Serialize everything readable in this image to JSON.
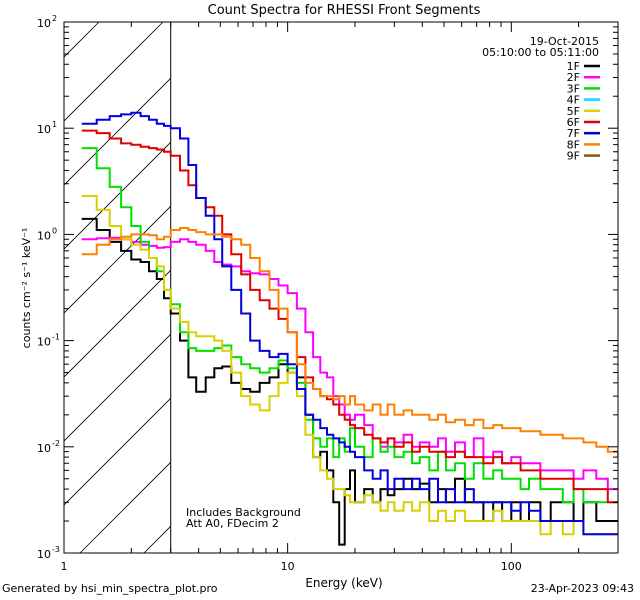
{
  "chart_data": {
    "type": "line",
    "title": "Count Spectra for RHESSI Front Segments",
    "xlabel": "Energy (keV)",
    "ylabel": "counts cm⁻² s⁻¹ keV⁻¹",
    "xscale": "log",
    "yscale": "log",
    "xlim": [
      1,
      300
    ],
    "ylim": [
      0.001,
      100
    ],
    "x_tick_labels": [
      "1",
      "10",
      "100"
    ],
    "y_tick_labels": [
      {
        "base": "10",
        "exp": "-3"
      },
      {
        "base": "10",
        "exp": "-2"
      },
      {
        "base": "10",
        "exp": "-1"
      },
      {
        "base": "10",
        "exp": "0"
      },
      {
        "base": "10",
        "exp": "1"
      },
      {
        "base": "10",
        "exp": "2"
      }
    ],
    "attenuator_region_max_keV": 3,
    "annotations": [
      "Includes Background",
      "Att A0, FDecim 2"
    ],
    "date": "19-Oct-2015",
    "time_range": "05:10:00 to 05:11:00",
    "legend": [
      {
        "label": "1F",
        "color": "#000000"
      },
      {
        "label": "2F",
        "color": "#ff00ff"
      },
      {
        "label": "3F",
        "color": "#00e000"
      },
      {
        "label": "4F",
        "color": "#00e0ff"
      },
      {
        "label": "5F",
        "color": "#d8d000"
      },
      {
        "label": "6F",
        "color": "#e00000"
      },
      {
        "label": "7F",
        "color": "#0000e0"
      },
      {
        "label": "8F",
        "color": "#ff8000"
      },
      {
        "label": "9F",
        "color": "#806000"
      }
    ],
    "series": [
      {
        "name": "1F",
        "color": "#000000",
        "x": [
          1.2,
          1.4,
          1.6,
          1.8,
          2.0,
          2.2,
          2.4,
          2.6,
          2.8,
          3.0,
          3.3,
          3.6,
          3.9,
          4.3,
          4.7,
          5.1,
          5.6,
          6.2,
          6.8,
          7.5,
          8.3,
          9.1,
          10,
          11,
          12,
          13,
          14,
          15,
          16,
          17,
          18,
          19,
          20,
          22,
          24,
          26,
          28,
          30,
          33,
          36,
          39,
          43,
          47,
          51,
          56,
          62,
          68,
          75,
          83,
          91,
          100,
          110,
          120,
          135,
          150,
          170,
          190,
          210,
          240,
          270,
          300
        ],
        "y": [
          1.4,
          1.1,
          0.85,
          0.7,
          0.58,
          0.55,
          0.45,
          0.38,
          0.25,
          0.18,
          0.1,
          0.045,
          0.033,
          0.045,
          0.055,
          0.057,
          0.04,
          0.035,
          0.033,
          0.04,
          0.045,
          0.06,
          0.05,
          0.045,
          0.02,
          0.008,
          0.009,
          0.006,
          0.003,
          0.0012,
          0.004,
          0.006,
          0.003,
          0.004,
          0.003,
          0.004,
          0.0035,
          0.004,
          0.005,
          0.004,
          0.0045,
          0.003,
          0.004,
          0.003,
          0.005,
          0.003,
          0.003,
          0.002,
          0.003,
          0.002,
          0.003,
          0.002,
          0.003,
          0.002,
          0.003,
          0.003,
          0.002,
          0.003,
          0.002,
          0.002,
          0.002
        ]
      },
      {
        "name": "2F",
        "color": "#ff00ff",
        "x": [
          1.2,
          1.4,
          1.6,
          1.8,
          2.0,
          2.2,
          2.4,
          2.6,
          2.8,
          3.0,
          3.3,
          3.6,
          3.9,
          4.3,
          4.7,
          5.1,
          5.6,
          6.2,
          6.8,
          7.5,
          8.3,
          9.1,
          10,
          11,
          12,
          13,
          14,
          15,
          16,
          17,
          18,
          19,
          20,
          22,
          24,
          26,
          28,
          30,
          33,
          36,
          39,
          43,
          47,
          51,
          56,
          62,
          68,
          75,
          83,
          91,
          100,
          110,
          120,
          135,
          150,
          170,
          190,
          210,
          240,
          270,
          300
        ],
        "y": [
          0.9,
          0.92,
          0.93,
          0.9,
          0.85,
          0.8,
          0.78,
          0.75,
          0.76,
          0.85,
          0.9,
          0.85,
          0.8,
          0.7,
          0.55,
          0.52,
          0.5,
          0.45,
          0.43,
          0.42,
          0.38,
          0.33,
          0.28,
          0.2,
          0.12,
          0.07,
          0.05,
          0.045,
          0.03,
          0.025,
          0.02,
          0.018,
          0.02,
          0.016,
          0.012,
          0.01,
          0.012,
          0.011,
          0.013,
          0.01,
          0.011,
          0.01,
          0.012,
          0.009,
          0.011,
          0.008,
          0.012,
          0.008,
          0.009,
          0.007,
          0.008,
          0.007,
          0.007,
          0.006,
          0.006,
          0.006,
          0.005,
          0.006,
          0.005,
          0.004,
          0.004
        ]
      },
      {
        "name": "3F",
        "color": "#00e000",
        "x": [
          1.2,
          1.4,
          1.6,
          1.8,
          2.0,
          2.2,
          2.4,
          2.6,
          2.8,
          3.0,
          3.3,
          3.6,
          3.9,
          4.3,
          4.7,
          5.1,
          5.6,
          6.2,
          6.8,
          7.5,
          8.3,
          9.1,
          10,
          11,
          12,
          13,
          14,
          15,
          16,
          17,
          18,
          19,
          20,
          22,
          24,
          26,
          28,
          30,
          33,
          36,
          39,
          43,
          47,
          51,
          56,
          62,
          68,
          75,
          83,
          91,
          100,
          110,
          120,
          135,
          150,
          170,
          190,
          210,
          240,
          270,
          300
        ],
        "y": [
          6.5,
          4.2,
          2.8,
          1.8,
          1.2,
          0.85,
          0.6,
          0.45,
          0.3,
          0.22,
          0.12,
          0.085,
          0.08,
          0.08,
          0.085,
          0.09,
          0.07,
          0.06,
          0.055,
          0.05,
          0.055,
          0.065,
          0.055,
          0.04,
          0.018,
          0.012,
          0.01,
          0.012,
          0.008,
          0.012,
          0.009,
          0.015,
          0.01,
          0.008,
          0.012,
          0.009,
          0.01,
          0.008,
          0.009,
          0.007,
          0.008,
          0.006,
          0.009,
          0.006,
          0.007,
          0.005,
          0.007,
          0.005,
          0.006,
          0.005,
          0.005,
          0.004,
          0.005,
          0.004,
          0.004,
          0.003,
          0.004,
          0.003,
          0.003,
          0.003,
          0.003
        ]
      },
      {
        "name": "5F",
        "color": "#d8d000",
        "x": [
          1.2,
          1.4,
          1.6,
          1.8,
          2.0,
          2.2,
          2.4,
          2.6,
          2.8,
          3.0,
          3.3,
          3.6,
          3.9,
          4.3,
          4.7,
          5.1,
          5.6,
          6.2,
          6.8,
          7.5,
          8.3,
          9.1,
          10,
          11,
          12,
          13,
          14,
          15,
          16,
          17,
          18,
          19,
          20,
          22,
          24,
          26,
          28,
          30,
          33,
          36,
          39,
          43,
          47,
          51,
          56,
          62,
          68,
          75,
          83,
          91,
          100,
          110,
          120,
          135,
          150,
          170,
          190,
          210,
          240,
          270,
          300
        ],
        "y": [
          2.3,
          1.7,
          1.2,
          0.9,
          0.8,
          0.72,
          0.6,
          0.5,
          0.3,
          0.2,
          0.15,
          0.12,
          0.11,
          0.11,
          0.1,
          0.08,
          0.05,
          0.03,
          0.025,
          0.022,
          0.03,
          0.04,
          0.05,
          0.03,
          0.013,
          0.008,
          0.006,
          0.005,
          0.004,
          0.004,
          0.0035,
          0.003,
          0.003,
          0.0035,
          0.003,
          0.0025,
          0.003,
          0.0025,
          0.003,
          0.0025,
          0.003,
          0.002,
          0.0025,
          0.002,
          0.0025,
          0.002,
          0.002,
          0.002,
          0.0025,
          0.002,
          0.002,
          0.002,
          0.002,
          0.0015,
          0.002,
          0.0015,
          0.002,
          0.0015,
          0.0015,
          0.0015,
          0.0015
        ]
      },
      {
        "name": "6F",
        "color": "#e00000",
        "x": [
          1.2,
          1.4,
          1.6,
          1.8,
          2.0,
          2.2,
          2.4,
          2.6,
          2.8,
          3.0,
          3.3,
          3.6,
          3.9,
          4.3,
          4.7,
          5.1,
          5.6,
          6.2,
          6.8,
          7.5,
          8.3,
          9.1,
          10,
          11,
          12,
          13,
          14,
          15,
          16,
          17,
          18,
          19,
          20,
          22,
          24,
          26,
          28,
          30,
          33,
          36,
          39,
          43,
          47,
          51,
          56,
          62,
          68,
          75,
          83,
          91,
          100,
          110,
          120,
          135,
          150,
          170,
          190,
          210,
          240,
          270,
          300
        ],
        "y": [
          9.5,
          9.0,
          8.0,
          7.2,
          7.0,
          6.7,
          6.5,
          6.3,
          6.0,
          5.5,
          4.0,
          2.9,
          2.2,
          1.8,
          1.5,
          1.0,
          0.65,
          0.42,
          0.3,
          0.24,
          0.2,
          0.16,
          0.12,
          0.07,
          0.045,
          0.035,
          0.03,
          0.028,
          0.025,
          0.02,
          0.018,
          0.016,
          0.015,
          0.013,
          0.012,
          0.011,
          0.012,
          0.01,
          0.011,
          0.009,
          0.01,
          0.009,
          0.009,
          0.008,
          0.009,
          0.008,
          0.008,
          0.007,
          0.008,
          0.007,
          0.007,
          0.006,
          0.006,
          0.005,
          0.005,
          0.005,
          0.004,
          0.004,
          0.004,
          0.003,
          0.003
        ]
      },
      {
        "name": "7F",
        "color": "#0000e0",
        "x": [
          1.2,
          1.4,
          1.6,
          1.8,
          2.0,
          2.2,
          2.4,
          2.6,
          2.8,
          3.0,
          3.3,
          3.6,
          3.9,
          4.3,
          4.7,
          5.1,
          5.6,
          6.2,
          6.8,
          7.5,
          8.3,
          9.1,
          10,
          11,
          12,
          13,
          14,
          15,
          16,
          17,
          18,
          19,
          20,
          22,
          24,
          26,
          28,
          30,
          33,
          36,
          39,
          43,
          47,
          51,
          56,
          62,
          68,
          75,
          83,
          91,
          100,
          110,
          120,
          135,
          150,
          170,
          190,
          210,
          240,
          270,
          300
        ],
        "y": [
          11,
          12,
          13,
          13.5,
          14,
          13,
          12,
          11,
          10.5,
          10,
          8.0,
          4.5,
          2.2,
          1.5,
          0.9,
          0.5,
          0.3,
          0.18,
          0.1,
          0.08,
          0.07,
          0.075,
          0.06,
          0.035,
          0.02,
          0.018,
          0.015,
          0.013,
          0.012,
          0.011,
          0.01,
          0.009,
          0.008,
          0.006,
          0.005,
          0.006,
          0.004,
          0.005,
          0.004,
          0.005,
          0.004,
          0.005,
          0.003,
          0.004,
          0.003,
          0.004,
          0.003,
          0.003,
          0.003,
          0.003,
          0.0025,
          0.003,
          0.0025,
          0.002,
          0.002,
          0.002,
          0.002,
          0.0015,
          0.0015,
          0.0015,
          0.0015
        ]
      },
      {
        "name": "8F",
        "color": "#ff8000",
        "x": [
          1.2,
          1.4,
          1.6,
          1.8,
          2.0,
          2.2,
          2.4,
          2.6,
          2.8,
          3.0,
          3.3,
          3.6,
          3.9,
          4.3,
          4.7,
          5.1,
          5.6,
          6.2,
          6.8,
          7.5,
          8.3,
          9.1,
          10,
          11,
          12,
          13,
          14,
          15,
          16,
          17,
          18,
          19,
          20,
          22,
          24,
          26,
          28,
          30,
          33,
          36,
          39,
          43,
          47,
          51,
          56,
          62,
          68,
          75,
          83,
          91,
          100,
          110,
          120,
          135,
          150,
          170,
          190,
          210,
          240,
          270,
          300
        ],
        "y": [
          0.65,
          0.8,
          0.9,
          0.95,
          1.0,
          1.0,
          0.98,
          0.9,
          0.95,
          1.1,
          1.15,
          1.1,
          1.05,
          1.0,
          1.0,
          0.95,
          0.9,
          0.8,
          0.6,
          0.45,
          0.3,
          0.2,
          0.12,
          0.06,
          0.04,
          0.035,
          0.03,
          0.03,
          0.028,
          0.03,
          0.025,
          0.03,
          0.025,
          0.022,
          0.025,
          0.02,
          0.025,
          0.02,
          0.022,
          0.02,
          0.02,
          0.018,
          0.02,
          0.017,
          0.018,
          0.016,
          0.018,
          0.015,
          0.016,
          0.015,
          0.015,
          0.014,
          0.014,
          0.013,
          0.013,
          0.012,
          0.012,
          0.011,
          0.01,
          0.009,
          0.008
        ]
      }
    ]
  },
  "footer": {
    "left": "Generated by hsi_min_spectra_plot.pro",
    "right": "23-Apr-2023 09:43"
  }
}
